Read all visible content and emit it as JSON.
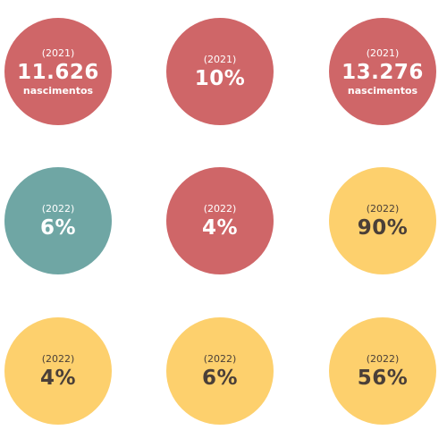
{
  "colors": {
    "red": "#cf6668",
    "teal": "#6fa6a4",
    "yellow": "#fdd06d",
    "dark_text": "#4a3f38"
  },
  "stats": [
    {
      "year": "(2021)",
      "value": "11.626",
      "unit": "nascimentos",
      "color": "red"
    },
    {
      "year": "(2021)",
      "value": "10%",
      "color": "red"
    },
    {
      "year": "(2021)",
      "value": "13.276",
      "unit": "nascimentos",
      "color": "red"
    },
    {
      "year": "(2022)",
      "value": "6%",
      "color": "teal"
    },
    {
      "year": "(2022)",
      "value": "4%",
      "color": "red"
    },
    {
      "year": "(2022)",
      "value": "90%",
      "color": "yellow"
    },
    {
      "year": "(2022)",
      "value": "4%",
      "color": "yellow"
    },
    {
      "year": "(2022)",
      "value": "6%",
      "color": "yellow"
    },
    {
      "year": "(2022)",
      "value": "56%",
      "color": "yellow"
    }
  ]
}
